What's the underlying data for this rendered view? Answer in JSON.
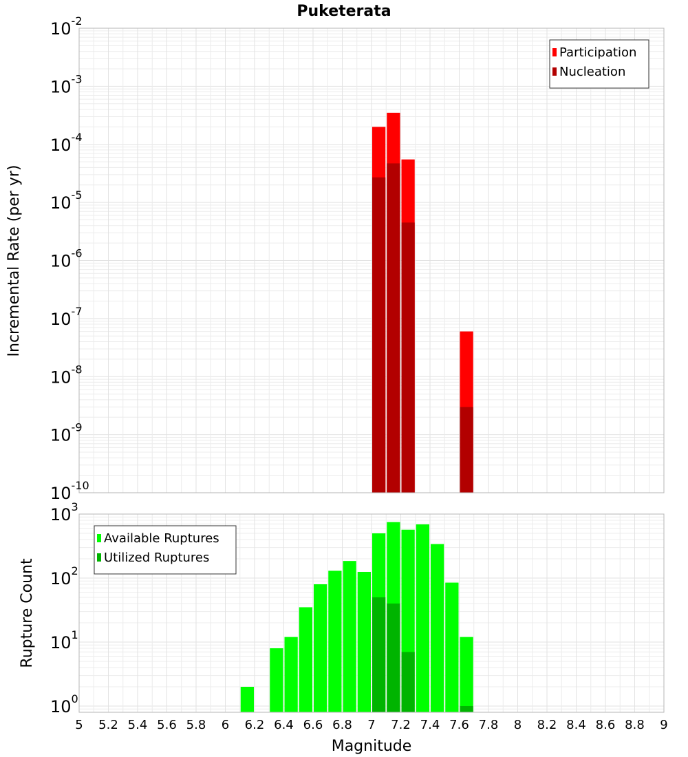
{
  "title": "Puketerata",
  "x_axis": {
    "label": "Magnitude",
    "ticks": [
      "5",
      "5.2",
      "5.4",
      "5.6",
      "5.8",
      "6",
      "6.2",
      "6.4",
      "6.6",
      "6.8",
      "7",
      "7.2",
      "7.4",
      "7.6",
      "7.8",
      "8",
      "8.2",
      "8.4",
      "8.6",
      "8.8",
      "9"
    ]
  },
  "chart_data": [
    {
      "type": "bar",
      "panel": "top",
      "title": "Puketerata",
      "xlabel": "",
      "ylabel": "Incremental Rate (per yr)",
      "y_scale": "log",
      "xlim": [
        5,
        9
      ],
      "ylim": [
        1e-10,
        0.01
      ],
      "y_tick_exponents": [
        -10,
        -9,
        -8,
        -7,
        -6,
        -5,
        -4,
        -3,
        -2
      ],
      "bar_width": 0.1,
      "grid": true,
      "legend_position": "top-right",
      "series": [
        {
          "name": "Participation",
          "color": "#ff0000",
          "x": [
            7.05,
            7.15,
            7.25,
            7.65
          ],
          "values": [
            0.0002,
            0.00035,
            5.5e-05,
            6e-08
          ]
        },
        {
          "name": "Nucleation",
          "color": "#b20000",
          "x": [
            7.05,
            7.15,
            7.25,
            7.65
          ],
          "values": [
            2.7e-05,
            4.7e-05,
            4.5e-06,
            3e-09
          ]
        }
      ]
    },
    {
      "type": "bar",
      "panel": "bottom",
      "xlabel": "Magnitude",
      "ylabel": "Rupture Count",
      "y_scale": "log",
      "xlim": [
        5,
        9
      ],
      "ylim": [
        0.8,
        1000
      ],
      "y_tick_exponents": [
        0,
        1,
        2,
        3
      ],
      "bar_width": 0.1,
      "grid": true,
      "legend_position": "top-left",
      "series": [
        {
          "name": "Available Ruptures",
          "color": "#00ff00",
          "x": [
            6.15,
            6.35,
            6.45,
            6.55,
            6.65,
            6.75,
            6.85,
            6.95,
            7.05,
            7.15,
            7.25,
            7.35,
            7.45,
            7.55,
            7.65
          ],
          "values": [
            2,
            8,
            12,
            35,
            80,
            130,
            185,
            125,
            500,
            750,
            570,
            690,
            340,
            85,
            12
          ]
        },
        {
          "name": "Utilized Ruptures",
          "color": "#00b400",
          "x": [
            7.05,
            7.15,
            7.25,
            7.65
          ],
          "values": [
            50,
            40,
            7,
            1
          ]
        }
      ]
    }
  ]
}
